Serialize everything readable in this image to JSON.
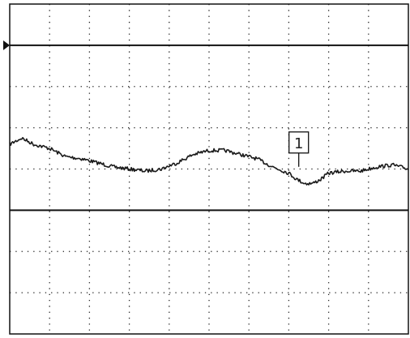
{
  "chart_data": {
    "type": "line",
    "title": "",
    "xlabel": "",
    "ylabel": "",
    "divisions": {
      "x": 10,
      "y": 8
    },
    "xlim": [
      0,
      10
    ],
    "ylim": [
      -4,
      4
    ],
    "grid": true,
    "colors": {
      "trace": "#1a1a1a",
      "grid": "#222222",
      "background": "#ffffff",
      "reference_line": "#111111"
    },
    "reference_lines": [
      {
        "name": "upper-reference",
        "y": 3
      },
      {
        "name": "lower-reference",
        "y": -1
      }
    ],
    "channel_marker": {
      "label": "1",
      "x": 7.25,
      "y": 0.25
    },
    "trigger_marker": {
      "symbol": "right-triangle",
      "y": 3
    },
    "series": [
      {
        "x": [
          0,
          0.3,
          0.6,
          1.0,
          1.4,
          1.8,
          2.2,
          2.6,
          3.0,
          3.4,
          3.8,
          4.2,
          4.6,
          5.0,
          5.4,
          5.8,
          6.2,
          6.6,
          7.0,
          7.2,
          7.4,
          7.6,
          7.8,
          8.0,
          8.4,
          8.8,
          9.2,
          9.6,
          10.0
        ],
        "values": [
          0.6,
          0.75,
          0.6,
          0.5,
          0.3,
          0.25,
          0.15,
          0.05,
          0.0,
          -0.05,
          0.0,
          0.15,
          0.35,
          0.45,
          0.45,
          0.35,
          0.25,
          0.05,
          -0.1,
          -0.25,
          -0.35,
          -0.35,
          -0.25,
          -0.1,
          -0.05,
          -0.05,
          0.05,
          0.1,
          0.0
        ]
      }
    ]
  }
}
